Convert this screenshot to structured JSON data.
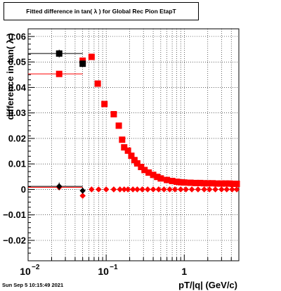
{
  "chart_data": {
    "type": "scatter",
    "title": "Fitted difference in tan( λ ) for Global Rec Pion EtapT",
    "xlabel": "pT/|q| (GeV/c)",
    "ylabel": "difference in tan( λ )",
    "x_scale": "log",
    "xlim": [
      0.01,
      5.0
    ],
    "ylim": [
      -0.028,
      0.063
    ],
    "x_ticks": [
      {
        "value": 0.01,
        "label": "10"
      },
      {
        "value": 0.1,
        "label": "10"
      },
      {
        "value": 1,
        "label": "1"
      }
    ],
    "x_tick_exponents": [
      "−2",
      "−1",
      ""
    ],
    "y_ticks": [
      {
        "value": 0.06,
        "label": "0.06"
      },
      {
        "value": 0.05,
        "label": "0.05"
      },
      {
        "value": 0.04,
        "label": "0.04"
      },
      {
        "value": 0.03,
        "label": "0.03"
      },
      {
        "value": 0.02,
        "label": "0.02"
      },
      {
        "value": 0.01,
        "label": "0.01"
      },
      {
        "value": 0.0,
        "label": "0"
      },
      {
        "value": -0.01,
        "label": "−0.01"
      },
      {
        "value": -0.02,
        "label": "−0.02"
      }
    ],
    "grid": true,
    "series": [
      {
        "marker": "square",
        "color": "#ff0000",
        "points": [
          {
            "x": 0.025,
            "y": 0.0453,
            "xerr_lo": 0.015,
            "xerr_hi": 0.025
          },
          {
            "x": 0.05,
            "y": 0.0505
          },
          {
            "x": 0.065,
            "y": 0.052
          },
          {
            "x": 0.078,
            "y": 0.0415
          },
          {
            "x": 0.095,
            "y": 0.0335
          },
          {
            "x": 0.125,
            "y": 0.0295
          },
          {
            "x": 0.145,
            "y": 0.025
          },
          {
            "x": 0.16,
            "y": 0.0195
          },
          {
            "x": 0.17,
            "y": 0.0165
          },
          {
            "x": 0.19,
            "y": 0.0152
          },
          {
            "x": 0.21,
            "y": 0.0132
          },
          {
            "x": 0.23,
            "y": 0.0115
          },
          {
            "x": 0.25,
            "y": 0.0102
          },
          {
            "x": 0.28,
            "y": 0.0088
          },
          {
            "x": 0.31,
            "y": 0.0076
          },
          {
            "x": 0.35,
            "y": 0.0066
          },
          {
            "x": 0.4,
            "y": 0.0057
          },
          {
            "x": 0.45,
            "y": 0.0049
          },
          {
            "x": 0.5,
            "y": 0.0043
          },
          {
            "x": 0.6,
            "y": 0.0037
          },
          {
            "x": 0.7,
            "y": 0.0033
          },
          {
            "x": 0.8,
            "y": 0.003
          },
          {
            "x": 0.9,
            "y": 0.0028
          },
          {
            "x": 1.0,
            "y": 0.0027
          },
          {
            "x": 1.2,
            "y": 0.0026
          },
          {
            "x": 1.4,
            "y": 0.0025
          },
          {
            "x": 1.6,
            "y": 0.0025
          },
          {
            "x": 1.8,
            "y": 0.0024
          },
          {
            "x": 2.0,
            "y": 0.0024
          },
          {
            "x": 2.3,
            "y": 0.0024
          },
          {
            "x": 2.6,
            "y": 0.0023
          },
          {
            "x": 3.0,
            "y": 0.0023
          },
          {
            "x": 3.4,
            "y": 0.0023
          },
          {
            "x": 3.8,
            "y": 0.0023
          },
          {
            "x": 4.2,
            "y": 0.0022
          },
          {
            "x": 4.7,
            "y": 0.0022
          }
        ]
      },
      {
        "marker": "square",
        "color": "#000000",
        "points": [
          {
            "x": 0.025,
            "y": 0.0533,
            "yerr": 0.0015,
            "xerr_lo": 0.015,
            "xerr_hi": 0.025
          },
          {
            "x": 0.05,
            "y": 0.0493,
            "yerr": 0.0012
          }
        ]
      },
      {
        "marker": "diamond",
        "color": "#ff0000",
        "points": [
          {
            "x": 0.025,
            "y": 0.0008,
            "xerr_lo": 0.015,
            "xerr_hi": 0.025
          },
          {
            "x": 0.05,
            "y": -0.0025
          },
          {
            "x": 0.065,
            "y": 0.0
          },
          {
            "x": 0.08,
            "y": 0.0
          },
          {
            "x": 0.1,
            "y": 0.0
          },
          {
            "x": 0.125,
            "y": 0.0
          },
          {
            "x": 0.15,
            "y": 0.0
          },
          {
            "x": 0.17,
            "y": 0.0
          },
          {
            "x": 0.19,
            "y": 0.0
          },
          {
            "x": 0.22,
            "y": 0.0
          },
          {
            "x": 0.25,
            "y": 0.0
          },
          {
            "x": 0.29,
            "y": 0.0
          },
          {
            "x": 0.34,
            "y": 0.0
          },
          {
            "x": 0.4,
            "y": 0.0
          },
          {
            "x": 0.47,
            "y": 0.0
          },
          {
            "x": 0.55,
            "y": 0.0
          },
          {
            "x": 0.65,
            "y": 0.0
          },
          {
            "x": 0.76,
            "y": 0.0
          },
          {
            "x": 0.9,
            "y": 0.0
          },
          {
            "x": 1.05,
            "y": 0.0
          },
          {
            "x": 1.25,
            "y": 0.0
          },
          {
            "x": 1.5,
            "y": 0.0
          },
          {
            "x": 1.8,
            "y": 0.0
          },
          {
            "x": 2.1,
            "y": 0.0
          },
          {
            "x": 2.5,
            "y": 0.0
          },
          {
            "x": 3.0,
            "y": 0.0
          },
          {
            "x": 3.5,
            "y": 0.0
          },
          {
            "x": 4.1,
            "y": 0.0
          },
          {
            "x": 4.7,
            "y": 0.0
          }
        ]
      },
      {
        "marker": "diamond",
        "color": "#000000",
        "points": [
          {
            "x": 0.025,
            "y": 0.0012,
            "yerr": 0.0015,
            "xerr_lo": 0.015,
            "xerr_hi": 0.025
          },
          {
            "x": 0.05,
            "y": -0.0005,
            "yerr": 0.0012
          }
        ]
      }
    ]
  },
  "footer": {
    "timestamp": "Sun Sep  5 10:15:49 2021"
  }
}
